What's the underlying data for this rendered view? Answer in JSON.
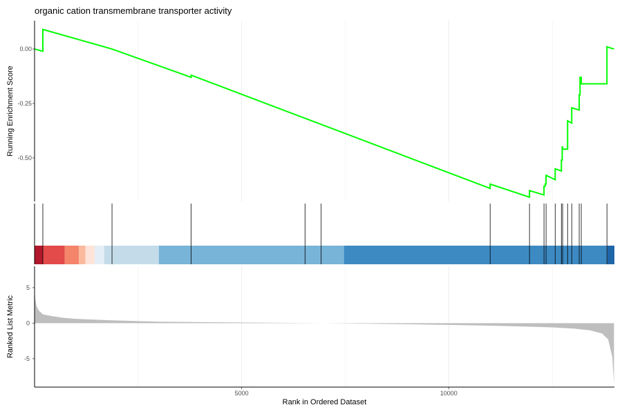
{
  "chart_data": {
    "type": "line",
    "title": "organic cation transmembrane transporter activity",
    "xlabel": "Rank in Ordered Dataset",
    "xlim": [
      0,
      14000
    ],
    "x_ticks": [
      5000,
      10000
    ],
    "x_tick_labels": [
      "5000",
      "10000"
    ],
    "grid": "vertical",
    "panels": [
      {
        "name": "enrichment",
        "ylabel": "Running Enrichment Score",
        "ylim": [
          -0.7,
          0.13
        ],
        "y_ticks": [
          0,
          -0.25,
          -0.5
        ],
        "y_tick_labels": [
          "0.00",
          "-0.25",
          "-0.50"
        ],
        "line_color": "#00ff00",
        "x": [
          0,
          200,
          200,
          1870,
          1870,
          3780,
          3780,
          11000,
          11000,
          11950,
          11950,
          12300,
          12300,
          12330,
          12330,
          12350,
          12350,
          12570,
          12570,
          12720,
          12720,
          12740,
          12740,
          12750,
          12750,
          12870,
          12870,
          12970,
          12970,
          13150,
          13150,
          13170,
          13170,
          13200,
          13200,
          13820,
          13820,
          13990
        ],
        "y": [
          0,
          -0.01,
          0.09,
          0.0,
          -0.0,
          -0.13,
          -0.12,
          -0.64,
          -0.62,
          -0.68,
          -0.65,
          -0.67,
          -0.63,
          -0.63,
          -0.62,
          -0.62,
          -0.58,
          -0.6,
          -0.55,
          -0.56,
          -0.51,
          -0.51,
          -0.45,
          -0.45,
          -0.46,
          -0.46,
          -0.33,
          -0.34,
          -0.27,
          -0.28,
          -0.21,
          -0.21,
          -0.13,
          -0.13,
          -0.16,
          -0.16,
          0.01,
          0.0
        ]
      },
      {
        "name": "hits",
        "positions": [
          200,
          1870,
          3780,
          6530,
          6920,
          11000,
          11950,
          12300,
          12350,
          12570,
          12720,
          12750,
          12870,
          12970,
          13150,
          13200,
          13820
        ],
        "color_bands": [
          {
            "from": 0,
            "to": 200,
            "color": "#b2182b"
          },
          {
            "from": 200,
            "to": 730,
            "color": "#e34a4a"
          },
          {
            "from": 730,
            "to": 1070,
            "color": "#f4846a"
          },
          {
            "from": 1070,
            "to": 1230,
            "color": "#fbb99d"
          },
          {
            "from": 1230,
            "to": 1450,
            "color": "#fde3d8"
          },
          {
            "from": 1450,
            "to": 1680,
            "color": "#e4eef6"
          },
          {
            "from": 1680,
            "to": 3000,
            "color": "#c4dcea"
          },
          {
            "from": 3000,
            "to": 7470,
            "color": "#78b4d8"
          },
          {
            "from": 7470,
            "to": 13830,
            "color": "#3d8ac3"
          },
          {
            "from": 13830,
            "to": 14000,
            "color": "#1f66a8"
          }
        ]
      },
      {
        "name": "ranked_metric",
        "ylabel": "Ranked List Metric",
        "ylim": [
          -9,
          8
        ],
        "y_ticks": [
          5,
          0,
          -5
        ],
        "y_tick_labels": [
          "5",
          "0",
          "-5"
        ],
        "fill_color": "#bebebe",
        "x": [
          0,
          20,
          50,
          100,
          200,
          400,
          700,
          1000,
          2000,
          3000,
          5000,
          7000,
          9000,
          11000,
          12000,
          12500,
          13000,
          13400,
          13700,
          13850,
          13950,
          13990
        ],
        "y": [
          4.8,
          3.3,
          2.4,
          1.8,
          1.25,
          1.0,
          0.75,
          0.6,
          0.38,
          0.2,
          0.1,
          0.0,
          -0.15,
          -0.35,
          -0.5,
          -0.6,
          -0.75,
          -1.0,
          -1.45,
          -2.3,
          -4.8,
          -8.5
        ]
      }
    ]
  }
}
